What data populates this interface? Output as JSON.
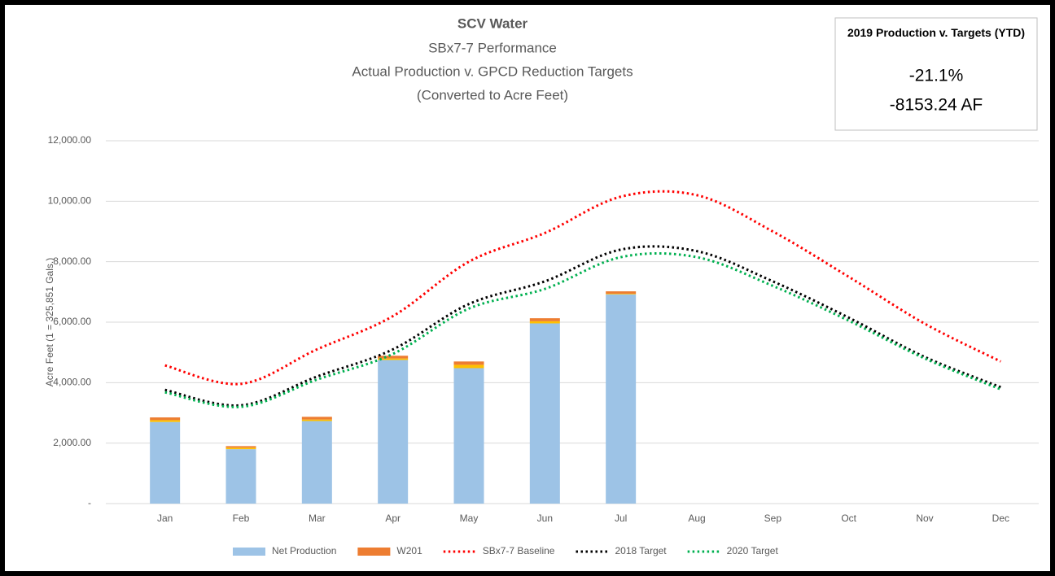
{
  "chart_data": {
    "type": "bar",
    "title": "SCV Water",
    "subtitle": [
      "SBx7-7 Performance",
      "Actual Production v. GPCD Reduction Targets",
      "(Converted to Acre Feet)"
    ],
    "annotation": {
      "title": "2019 Production v. Targets (YTD)",
      "lines": [
        "-21.1%",
        "-8153.24 AF"
      ]
    },
    "ylabel": "Acre Feet (1 = 325,851 Gals.)",
    "categories": [
      "Jan",
      "Feb",
      "Mar",
      "Apr",
      "May",
      "Jun",
      "Jul",
      "Aug",
      "Sep",
      "Oct",
      "Nov",
      "Dec"
    ],
    "ylim": [
      0,
      12000
    ],
    "yticks": [
      {
        "value": 0,
        "label": "-"
      },
      {
        "value": 2000,
        "label": "2,000.00"
      },
      {
        "value": 4000,
        "label": "4,000.00"
      },
      {
        "value": 6000,
        "label": "6,000.00"
      },
      {
        "value": 8000,
        "label": "8,000.00"
      },
      {
        "value": 10000,
        "label": "10,000.00"
      },
      {
        "value": 12000,
        "label": "12,000.00"
      }
    ],
    "grid": true,
    "series": [
      {
        "name": "Net Production",
        "type": "bar",
        "color": "#9dc3e6",
        "values": [
          2700,
          1800,
          2730,
          4750,
          4480,
          5960,
          6920,
          null,
          null,
          null,
          null,
          null
        ]
      },
      {
        "name": null,
        "type": "bar",
        "color": "#ffc000",
        "values": [
          60,
          50,
          50,
          50,
          110,
          70,
          20,
          null,
          null,
          null,
          null,
          null
        ]
      },
      {
        "name": "W201",
        "type": "bar",
        "color": "#ed7d31",
        "values": [
          90,
          50,
          90,
          90,
          110,
          100,
          80,
          null,
          null,
          null,
          null,
          null
        ]
      },
      {
        "name": "SBx7-7 Baseline",
        "type": "line",
        "color": "#ff0000",
        "values": [
          4570,
          3960,
          5100,
          6200,
          8000,
          8950,
          10150,
          10200,
          9000,
          7500,
          5950,
          4700
        ]
      },
      {
        "name": "2018 Target",
        "type": "line",
        "color": "#000000",
        "values": [
          3760,
          3250,
          4200,
          5100,
          6600,
          7350,
          8400,
          8350,
          7350,
          6150,
          4850,
          3850
        ]
      },
      {
        "name": "2020 Target",
        "type": "line",
        "color": "#00b050",
        "values": [
          3680,
          3200,
          4100,
          4950,
          6450,
          7100,
          8150,
          8150,
          7200,
          6050,
          4800,
          3780
        ]
      }
    ]
  }
}
